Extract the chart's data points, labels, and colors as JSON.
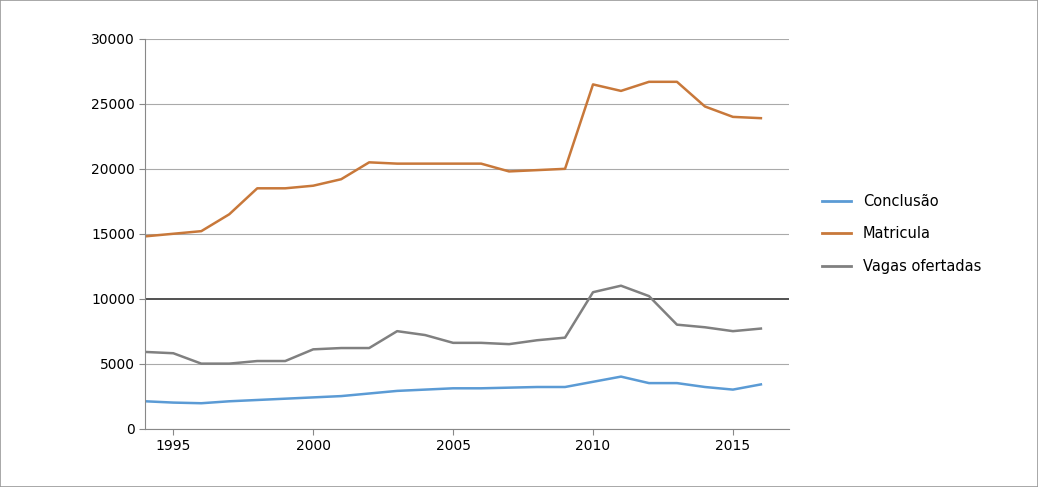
{
  "years": [
    1994,
    1995,
    1996,
    1997,
    1998,
    1999,
    2000,
    2001,
    2002,
    2003,
    2004,
    2005,
    2006,
    2007,
    2008,
    2009,
    2010,
    2011,
    2012,
    2013,
    2014,
    2015,
    2016
  ],
  "matricula": [
    14800,
    15000,
    15200,
    16500,
    18500,
    18500,
    18700,
    19200,
    20500,
    20400,
    20400,
    20400,
    20400,
    19800,
    19900,
    20000,
    26500,
    26000,
    26700,
    26700,
    24800,
    24000,
    23900
  ],
  "conclusao": [
    2100,
    2000,
    1950,
    2100,
    2200,
    2300,
    2400,
    2500,
    2700,
    2900,
    3000,
    3100,
    3100,
    3150,
    3200,
    3200,
    3600,
    4000,
    3500,
    3500,
    3200,
    3000,
    3400
  ],
  "vagas_ofertadas": [
    5900,
    5800,
    5000,
    5000,
    5200,
    5200,
    6100,
    6200,
    6200,
    7500,
    7200,
    6600,
    6600,
    6500,
    6800,
    7000,
    10500,
    11000,
    10200,
    8000,
    7800,
    7500,
    7700
  ],
  "color_matricula": "#C8783A",
  "color_conclusao": "#5B9BD5",
  "color_vagas": "#808080",
  "ylim": [
    0,
    30000
  ],
  "yticks": [
    0,
    5000,
    10000,
    15000,
    20000,
    25000,
    30000
  ],
  "xlim": [
    1994,
    2017
  ],
  "xticks": [
    1995,
    2000,
    2005,
    2010,
    2015
  ],
  "legend_labels": [
    "Conclusão",
    "Matricula",
    "Vagas ofertadas"
  ],
  "background_color": "#ffffff",
  "line_width": 1.8,
  "outer_border_color": "#999999",
  "grid_color": "#AAAAAA",
  "thick_grid_value": 10000,
  "thick_grid_color": "#333333"
}
